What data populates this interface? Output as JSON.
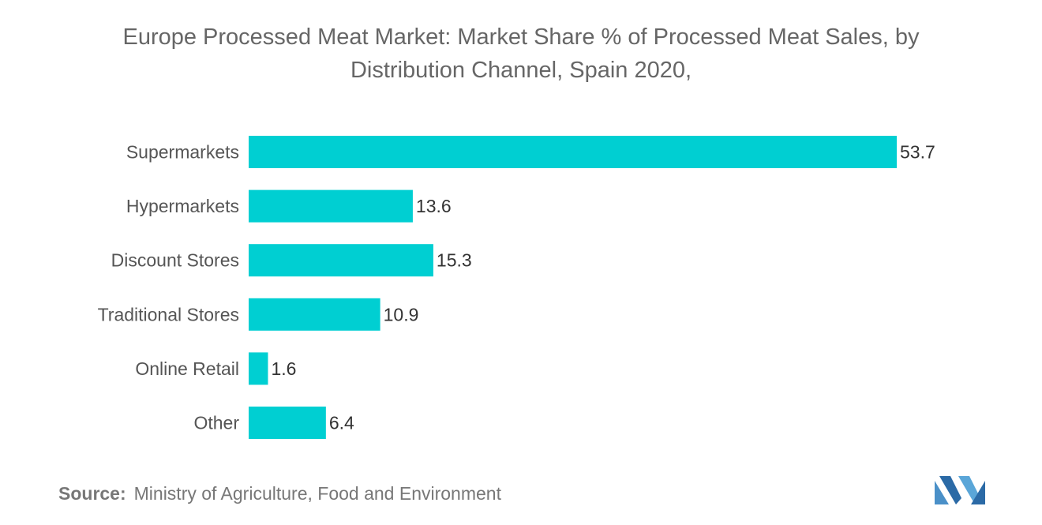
{
  "title_lines": [
    "Europe Processed Meat Market: Market Share % of Processed Meat Sales, by",
    "Distribution Channel, Spain 2020,"
  ],
  "source": {
    "label": "Source:",
    "text": "Ministry of Agriculture, Food and Environment"
  },
  "colors": {
    "bar": "#00cfd2",
    "label_text": "#555555",
    "value_text": "#333333",
    "logo": "#4a90c8"
  },
  "logo_icon": "brand-logo-icon",
  "chart_data": {
    "type": "bar",
    "orientation": "horizontal",
    "categories": [
      "Supermarkets",
      "Hypermarkets",
      "Discount Stores",
      "Traditional Stores",
      "Online Retail",
      "Other"
    ],
    "values": [
      53.7,
      13.6,
      15.3,
      10.9,
      1.6,
      6.4
    ],
    "value_labels": [
      "53.7",
      "13.6",
      "15.3",
      "10.9",
      "1.6",
      "6.4"
    ],
    "xlim": [
      0,
      53.7
    ],
    "grid": false,
    "legend": "none"
  }
}
